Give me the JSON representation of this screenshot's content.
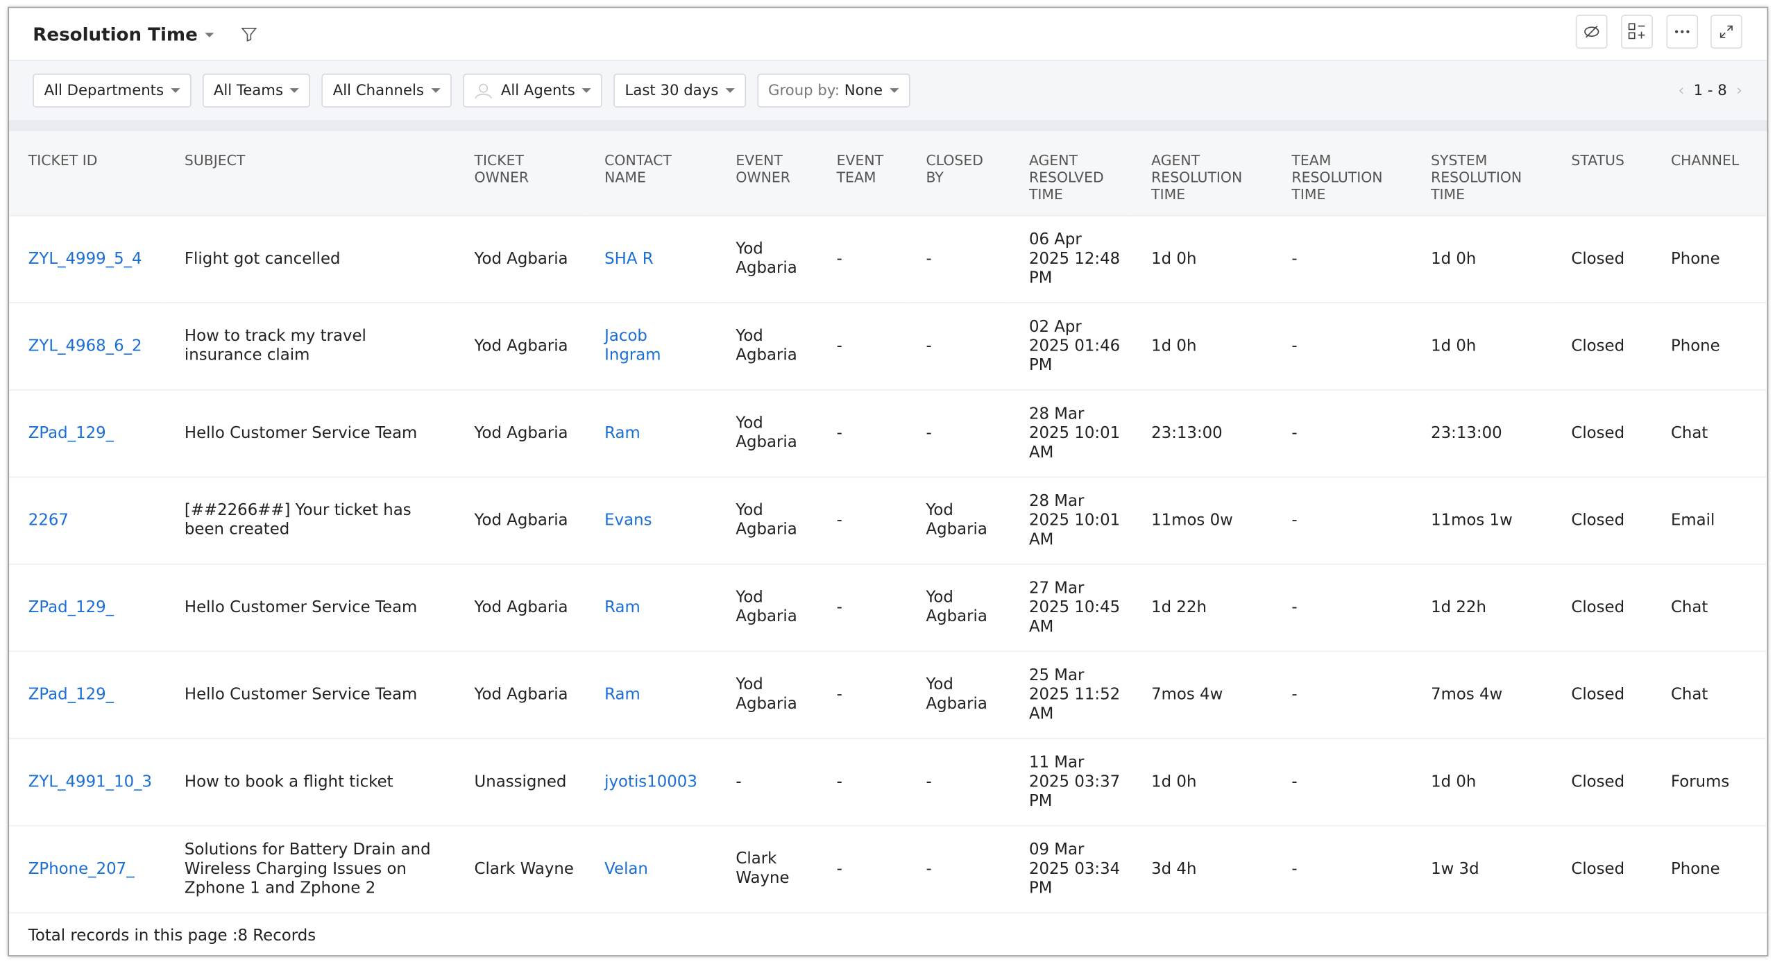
{
  "header": {
    "title": "Resolution Time"
  },
  "filters": [
    "All Departments",
    "All Teams",
    "All Channels",
    "All Agents",
    "Last 30 days"
  ],
  "group_by": {
    "label": "Group by:",
    "value": "None"
  },
  "pagination": "1 - 8",
  "table": {
    "columns": [
      "TICKET ID",
      "SUBJECT",
      "TICKET OWNER",
      "CONTACT NAME",
      "EVENT OWNER",
      "EVENT TEAM",
      "CLOSED BY",
      "AGENT RESOLVED TIME",
      "AGENT RESOLUTION TIME",
      "TEAM RESOLUTION TIME",
      "SYSTEM RESOLUTION TIME",
      "STATUS",
      "CHANNEL"
    ],
    "rows": [
      [
        "ZYL_4999_5_4",
        "Flight got cancelled",
        "Yod Agbaria",
        "SHA R",
        "Yod Agbaria",
        "-",
        "-",
        "06 Apr 2025 12:48 PM",
        "1d 0h",
        "-",
        "1d 0h",
        "Closed",
        "Phone"
      ],
      [
        "ZYL_4968_6_2",
        "How to track my travel insurance claim",
        "Yod Agbaria",
        "Jacob Ingram",
        "Yod Agbaria",
        "-",
        "-",
        "02 Apr 2025 01:46 PM",
        "1d 0h",
        "-",
        "1d 0h",
        "Closed",
        "Phone"
      ],
      [
        "ZPad_129_",
        "Hello Customer Service Team",
        "Yod Agbaria",
        "Ram",
        "Yod Agbaria",
        "-",
        "-",
        "28 Mar 2025 10:01 AM",
        "23:13:00",
        "-",
        "23:13:00",
        "Closed",
        "Chat"
      ],
      [
        "2267",
        "[##2266##] Your ticket has been created",
        "Yod Agbaria",
        "Evans",
        "Yod Agbaria",
        "-",
        "Yod Agbaria",
        "28 Mar 2025 10:01 AM",
        "11mos 0w",
        "-",
        "11mos 1w",
        "Closed",
        "Email"
      ],
      [
        "ZPad_129_",
        "Hello Customer Service Team",
        "Yod Agbaria",
        "Ram",
        "Yod Agbaria",
        "-",
        "Yod Agbaria",
        "27 Mar 2025 10:45 AM",
        "1d 22h",
        "-",
        "1d 22h",
        "Closed",
        "Chat"
      ],
      [
        "ZPad_129_",
        "Hello Customer Service Team",
        "Yod Agbaria",
        "Ram",
        "Yod Agbaria",
        "-",
        "Yod Agbaria",
        "25 Mar 2025 11:52 AM",
        "7mos 4w",
        "-",
        "7mos 4w",
        "Closed",
        "Chat"
      ],
      [
        "ZYL_4991_10_3",
        "How to book a flight ticket",
        "Unassigned",
        "jyotis10003",
        "-",
        "-",
        "-",
        "11 Mar 2025 03:37 PM",
        "1d 0h",
        "-",
        "1d 0h",
        "Closed",
        "Forums"
      ],
      [
        "ZPhone_207_",
        "Solutions for Battery Drain and Wireless Charging Issues on Zphone 1 and Zphone 2",
        "Clark Wayne",
        "Velan",
        "Clark Wayne",
        "-",
        "-",
        "09 Mar 2025 03:34 PM",
        "3d 4h",
        "-",
        "1w 3d",
        "Closed",
        "Phone"
      ]
    ]
  },
  "footer": "Total records in this page :8 Records"
}
